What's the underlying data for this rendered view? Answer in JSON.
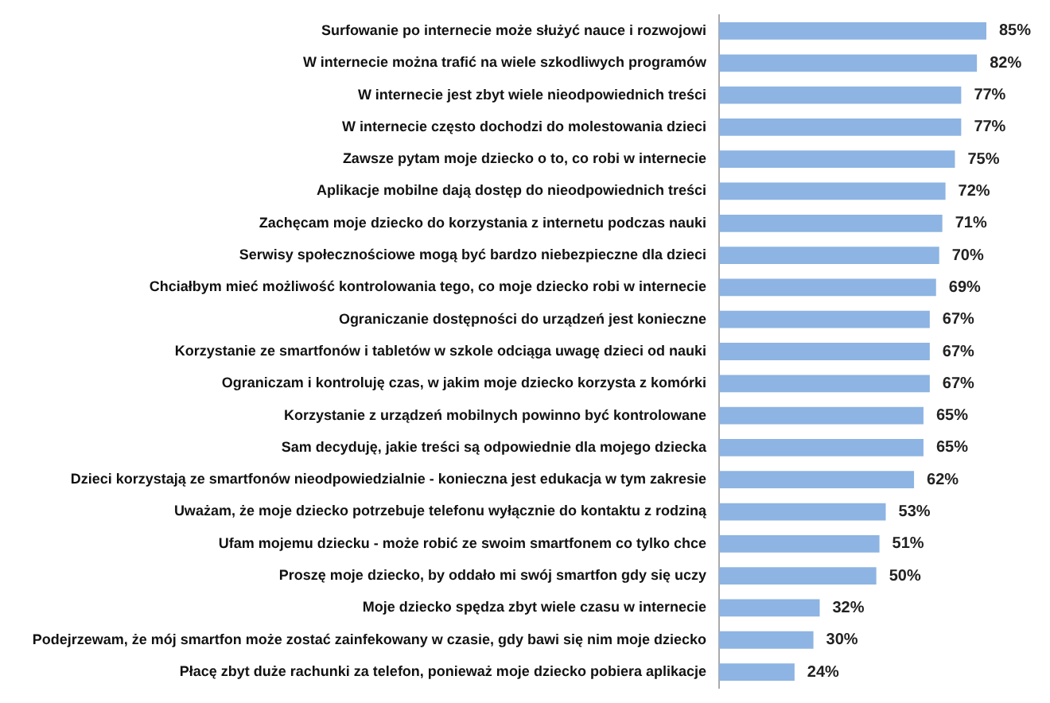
{
  "chart_data": {
    "type": "bar",
    "orientation": "horizontal",
    "categories": [
      "Surfowanie po internecie może służyć nauce i rozwojowi",
      "W internecie można trafić na wiele szkodliwych programów",
      "W internecie jest zbyt wiele nieodpowiednich treści",
      "W internecie często dochodzi do molestowania dzieci",
      "Zawsze pytam moje dziecko o to, co robi w internecie",
      "Aplikacje mobilne dają dostęp do nieodpowiednich treści",
      "Zachęcam moje dziecko do korzystania z internetu podczas nauki",
      "Serwisy społecznościowe mogą być bardzo niebezpieczne dla dzieci",
      "Chciałbym mieć możliwość kontrolowania tego, co moje dziecko robi w internecie",
      "Ograniczanie dostępności do urządzeń jest konieczne",
      "Korzystanie ze smartfonów i tabletów w szkole odciąga uwagę dzieci od nauki",
      "Ograniczam i kontroluję czas, w jakim moje dziecko korzysta z komórki",
      "Korzystanie z urządzeń mobilnych powinno być kontrolowane",
      "Sam decyduję, jakie treści są odpowiednie dla mojego dziecka",
      "Dzieci korzystają ze smartfonów nieodpowiedzialnie - konieczna jest edukacja w tym zakresie",
      "Uważam, że moje dziecko potrzebuje telefonu wyłącznie do kontaktu z rodziną",
      "Ufam mojemu dziecku - może robić ze swoim smartfonem co tylko chce",
      "Proszę moje dziecko, by oddało mi swój smartfon gdy się uczy",
      "Moje dziecko spędza zbyt wiele czasu w internecie",
      "Podejrzewam, że mój smartfon może zostać zainfekowany w czasie, gdy bawi się nim moje dziecko",
      "Płacę zbyt duże rachunki za telefon, ponieważ moje dziecko pobiera aplikacje"
    ],
    "values": [
      85,
      82,
      77,
      77,
      75,
      72,
      71,
      70,
      69,
      67,
      67,
      67,
      65,
      65,
      62,
      53,
      51,
      50,
      32,
      30,
      24
    ],
    "value_labels": [
      "85%",
      "82%",
      "77%",
      "77%",
      "75%",
      "72%",
      "71%",
      "70%",
      "69%",
      "67%",
      "67%",
      "67%",
      "65%",
      "65%",
      "62%",
      "53%",
      "51%",
      "50%",
      "32%",
      "30%",
      "24%"
    ],
    "color": "#8db4e2",
    "grid": false,
    "legend": false,
    "tick_labels": "y"
  }
}
